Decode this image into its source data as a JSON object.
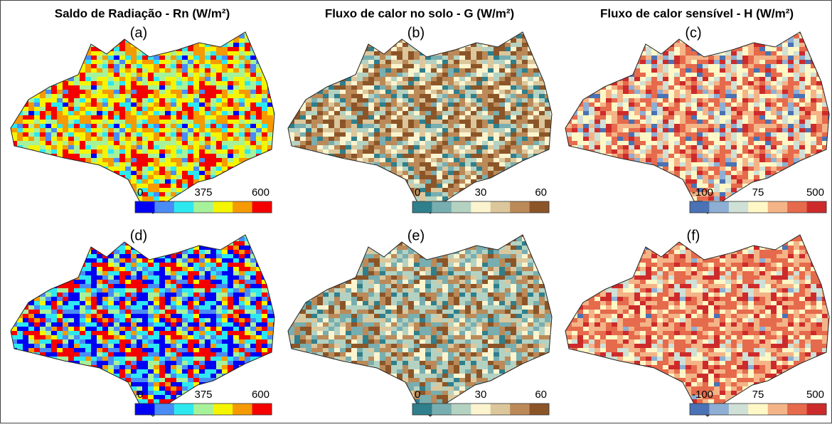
{
  "columns": [
    {
      "title": "Saldo de Radiação - Rn (W/m²)",
      "panels": [
        {
          "label": "(a)"
        },
        {
          "label": "(d)"
        }
      ],
      "colorbar": {
        "ticks": [
          "0",
          "375",
          "600"
        ],
        "colors": [
          "#0000f5",
          "#4a8cf5",
          "#2ee8f0",
          "#a6f29a",
          "#f5f500",
          "#f59a00",
          "#f50000"
        ]
      }
    },
    {
      "title": "Fluxo de calor no solo - G (W/m²)",
      "panels": [
        {
          "label": "(b)"
        },
        {
          "label": "(e)"
        }
      ],
      "colorbar": {
        "ticks": [
          "0",
          "30",
          "60"
        ],
        "colors": [
          "#2f7f8c",
          "#78aeb0",
          "#b4d2c2",
          "#fbf4cf",
          "#dcc79c",
          "#bb8a58",
          "#8c5528"
        ]
      }
    },
    {
      "title": "Fluxo de calor sensível - H (W/m²)",
      "panels": [
        {
          "label": "(c)"
        },
        {
          "label": "(f)"
        }
      ],
      "colorbar": {
        "ticks": [
          "-100",
          "75",
          "500"
        ],
        "colors": [
          "#4a72b4",
          "#8eaed4",
          "#cfe0d6",
          "#fff8c6",
          "#f4b487",
          "#e66a4c",
          "#cd2b2b"
        ]
      }
    }
  ]
}
